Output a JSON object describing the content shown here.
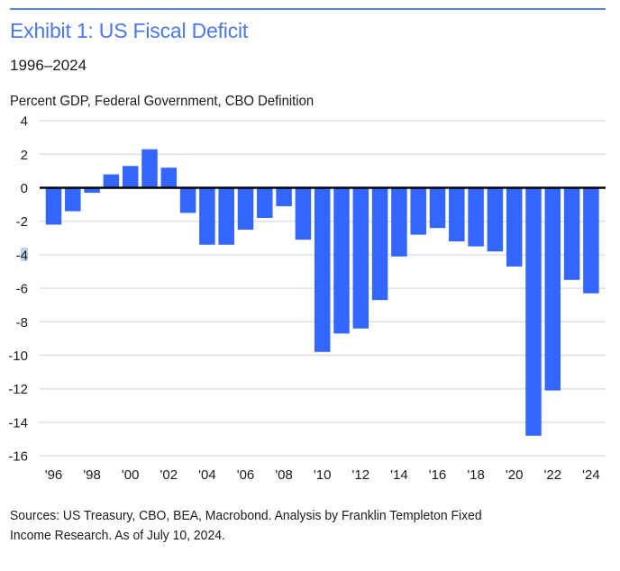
{
  "header": {
    "title": "Exhibit 1: US Fiscal Deficit",
    "subtitle": "1996–2024",
    "unit_label": "Percent GDP, Federal Government, CBO Definition"
  },
  "footer": {
    "sources_line1": "Sources: US Treasury, CBO, BEA, Macrobond. Analysis by Franklin Templeton Fixed",
    "sources_line2": "Income Research. As of July 10, 2024."
  },
  "colors": {
    "bar": "#3366ff",
    "title": "#4a78e6",
    "gridline": "#e0e0e0",
    "zero_line": "#000000"
  },
  "chart_data": {
    "type": "bar",
    "title": "Exhibit 1: US Fiscal Deficit",
    "subtitle": "1996–2024",
    "ylabel": "Percent GDP, Federal Government, CBO Definition",
    "xlabel": "",
    "ylim": [
      -16,
      4
    ],
    "yticks": [
      4,
      2,
      0,
      -2,
      -4,
      -6,
      -8,
      -10,
      -12,
      -14,
      -16
    ],
    "grid": true,
    "categories": [
      "1996",
      "1997",
      "1998",
      "1999",
      "2000",
      "2001",
      "2002",
      "2003",
      "2004",
      "2005",
      "2006",
      "2007",
      "2008",
      "2009",
      "2010",
      "2011",
      "2012",
      "2013",
      "2014",
      "2015",
      "2016",
      "2017",
      "2018",
      "2019",
      "2020",
      "2021",
      "2022",
      "2023",
      "2024"
    ],
    "xtick_labels": [
      "'96",
      "'98",
      "'00",
      "'02",
      "'04",
      "'06",
      "'08",
      "'10",
      "'12",
      "'14",
      "'16",
      "'18",
      "'20",
      "'22",
      "'24"
    ],
    "values": [
      -2.2,
      -1.4,
      -0.3,
      0.8,
      1.3,
      2.3,
      1.2,
      -1.5,
      -3.4,
      -3.4,
      -2.5,
      -1.8,
      -1.1,
      -3.1,
      -9.8,
      -8.7,
      -8.4,
      -6.7,
      -4.1,
      -2.8,
      -2.4,
      -3.2,
      -3.5,
      -3.8,
      -4.7,
      -14.8,
      -12.1,
      -5.5,
      -6.3
    ]
  }
}
